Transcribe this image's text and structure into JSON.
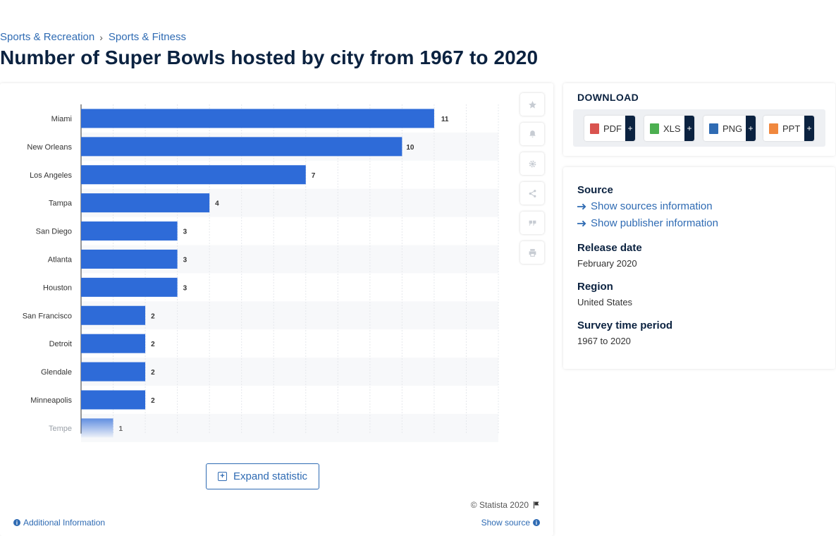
{
  "breadcrumb": {
    "items": [
      "Sports & Recreation",
      "Sports & Fitness"
    ],
    "separator": "›"
  },
  "page_title": "Number of Super Bowls hosted by city from 1967 to 2020",
  "chart_data": {
    "type": "bar",
    "orientation": "horizontal",
    "title": "",
    "xlabel": "",
    "ylabel": "",
    "categories": [
      "Miami",
      "New Orleans",
      "Los Angeles",
      "Tampa",
      "San Diego",
      "Atlanta",
      "Houston",
      "San Francisco",
      "Detroit",
      "Glendale",
      "Minneapolis",
      "Tempe"
    ],
    "values": [
      11,
      10,
      7,
      4,
      3,
      3,
      3,
      2,
      2,
      2,
      2,
      1
    ],
    "xlim": [
      0,
      13
    ],
    "grid": true,
    "data_labels": true,
    "bar_color": "#2e6bd8"
  },
  "tools": {
    "icons": [
      "star-icon",
      "bell-icon",
      "gear-icon",
      "share-icon",
      "quote-icon",
      "print-icon"
    ]
  },
  "chart_footer": {
    "expand_label": "Expand statistic",
    "copyright": "© Statista 2020",
    "additional_info": "Additional Information",
    "show_source": "Show source"
  },
  "download": {
    "title": "DOWNLOAD",
    "formats": [
      {
        "label": "PDF",
        "color": "#d9534f"
      },
      {
        "label": "XLS",
        "color": "#4caf50"
      },
      {
        "label": "PNG",
        "color": "#2f6bb3"
      },
      {
        "label": "PPT",
        "color": "#f0883e"
      }
    ],
    "plus": "+"
  },
  "meta": {
    "source_heading": "Source",
    "show_sources": "Show sources information",
    "show_publisher": "Show publisher information",
    "release_heading": "Release date",
    "release_value": "February 2020",
    "region_heading": "Region",
    "region_value": "United States",
    "survey_heading": "Survey time period",
    "survey_value": "1967 to 2020"
  },
  "colors": {
    "accent": "#2f6bb3",
    "navy": "#0b2240"
  }
}
